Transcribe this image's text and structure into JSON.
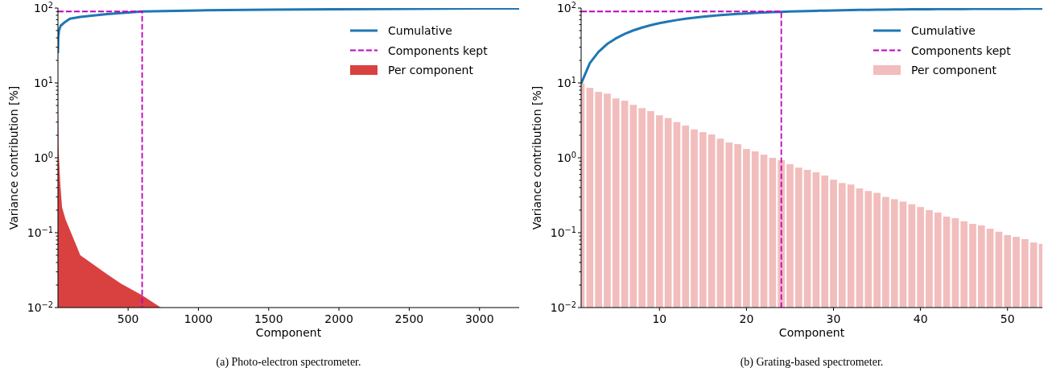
{
  "chart_data": [
    {
      "type": "area",
      "xlabel": "Component",
      "ylabel": "Variance contribution [%]",
      "log": "y",
      "legend": "top right",
      "xlim": [
        1,
        3282
      ],
      "ylim": [
        0.01,
        100
      ],
      "xticks": [
        500,
        1000,
        1500,
        2000,
        2500,
        3000
      ],
      "yticks": [
        {
          "value": 0.01,
          "label": "10$^{−2}$"
        },
        {
          "value": 0.1,
          "label": "10$^{−1}$"
        },
        {
          "value": 1,
          "label": "10$^{0}$"
        },
        {
          "value": 10,
          "label": "10$^{1}$"
        },
        {
          "value": 100,
          "label": "10$^{2}$"
        },
        {
          "value": 0.02,
          "label": null
        },
        {
          "value": 0.03,
          "label": null
        },
        {
          "value": 0.04,
          "label": null
        },
        {
          "value": 0.05,
          "label": null
        },
        {
          "value": 0.06,
          "label": null
        },
        {
          "value": 0.07,
          "label": null
        },
        {
          "value": 0.08,
          "label": null
        },
        {
          "value": 0.09,
          "label": null
        },
        {
          "value": 0.2,
          "label": null
        },
        {
          "value": 0.3,
          "label": null
        },
        {
          "value": 0.4,
          "label": null
        },
        {
          "value": 0.5,
          "label": null
        },
        {
          "value": 0.6,
          "label": null
        },
        {
          "value": 0.7,
          "label": null
        },
        {
          "value": 0.8,
          "label": null
        },
        {
          "value": 0.9,
          "label": null
        },
        {
          "value": 2,
          "label": null
        },
        {
          "value": 3,
          "label": null
        },
        {
          "value": 4,
          "label": null
        },
        {
          "value": 5,
          "label": null
        },
        {
          "value": 6,
          "label": null
        },
        {
          "value": 7,
          "label": null
        },
        {
          "value": 8,
          "label": null
        },
        {
          "value": 9,
          "label": null
        },
        {
          "value": 20,
          "label": null
        },
        {
          "value": 30,
          "label": null
        },
        {
          "value": 40,
          "label": null
        },
        {
          "value": 50,
          "label": null
        },
        {
          "value": 60,
          "label": null
        },
        {
          "value": 70,
          "label": null
        },
        {
          "value": 80,
          "label": null
        },
        {
          "value": 90,
          "label": null
        }
      ],
      "series": [
        {
          "name": "Cumulative",
          "type": "line",
          "line_style": "solid",
          "color": "#1f77b4",
          "x": [
            1,
            3,
            8,
            20,
            46,
            86,
            160,
            350,
            600,
            1000,
            1500,
            2000,
            2500,
            3000,
            3282
          ],
          "values": [
            25,
            40,
            50,
            58,
            64,
            72,
            76,
            83,
            90,
            93,
            95,
            96.5,
            97.5,
            98.5,
            99
          ]
        },
        {
          "name": "Components kept",
          "type": "line",
          "line_style": "dashed",
          "color": "#bf00bf",
          "x": [
            1,
            600,
            600
          ],
          "values": [
            90,
            90,
            0.01
          ]
        },
        {
          "name": "Per component",
          "color": "#d94141",
          "x": [
            1,
            2,
            5,
            17,
            30,
            55,
            103,
            160,
            350,
            447,
            600,
            733
          ],
          "values": [
            25,
            4,
            1.4,
            0.47,
            0.22,
            0.15,
            0.091,
            0.05,
            0.028,
            0.021,
            0.0146,
            0.01
          ]
        }
      ],
      "annotations": [
        "(a) Photo-electron spectrometer."
      ]
    },
    {
      "type": "bar",
      "xlabel": "Component",
      "ylabel": "Variance contribution [%]",
      "log": "y",
      "legend": "top right",
      "xlim": [
        1,
        54
      ],
      "ylim": [
        0.01,
        100
      ],
      "xticks": [
        10,
        20,
        30,
        40,
        50
      ],
      "yticks": [
        {
          "value": 0.01,
          "label": "10$^{−2}$"
        },
        {
          "value": 0.1,
          "label": "10$^{−1}$"
        },
        {
          "value": 1,
          "label": "10$^{0}$"
        },
        {
          "value": 10,
          "label": "10$^{1}$"
        },
        {
          "value": 100,
          "label": "10$^{2}$"
        },
        {
          "value": 0.02,
          "label": null
        },
        {
          "value": 0.03,
          "label": null
        },
        {
          "value": 0.04,
          "label": null
        },
        {
          "value": 0.05,
          "label": null
        },
        {
          "value": 0.06,
          "label": null
        },
        {
          "value": 0.07,
          "label": null
        },
        {
          "value": 0.08,
          "label": null
        },
        {
          "value": 0.09,
          "label": null
        },
        {
          "value": 0.2,
          "label": null
        },
        {
          "value": 0.3,
          "label": null
        },
        {
          "value": 0.4,
          "label": null
        },
        {
          "value": 0.5,
          "label": null
        },
        {
          "value": 0.6,
          "label": null
        },
        {
          "value": 0.7,
          "label": null
        },
        {
          "value": 0.8,
          "label": null
        },
        {
          "value": 0.9,
          "label": null
        },
        {
          "value": 2,
          "label": null
        },
        {
          "value": 3,
          "label": null
        },
        {
          "value": 4,
          "label": null
        },
        {
          "value": 5,
          "label": null
        },
        {
          "value": 6,
          "label": null
        },
        {
          "value": 7,
          "label": null
        },
        {
          "value": 8,
          "label": null
        },
        {
          "value": 9,
          "label": null
        },
        {
          "value": 20,
          "label": null
        },
        {
          "value": 30,
          "label": null
        },
        {
          "value": 40,
          "label": null
        },
        {
          "value": 50,
          "label": null
        },
        {
          "value": 60,
          "label": null
        },
        {
          "value": 70,
          "label": null
        },
        {
          "value": 80,
          "label": null
        },
        {
          "value": 90,
          "label": null
        }
      ],
      "series": [
        {
          "name": "Per component",
          "color": "#f2bdbd",
          "x": [
            1,
            2,
            3,
            4,
            5,
            6,
            7,
            8,
            9,
            10,
            11,
            12,
            13,
            14,
            15,
            16,
            17,
            18,
            19,
            20,
            21,
            22,
            23,
            24,
            25,
            26,
            27,
            28,
            29,
            30,
            31,
            32,
            33,
            34,
            35,
            36,
            37,
            38,
            39,
            40,
            41,
            42,
            43,
            44,
            45,
            46,
            47,
            48,
            49,
            50,
            51,
            52,
            53,
            54
          ],
          "values": [
            9.8,
            8.6,
            7.6,
            7.2,
            6.2,
            5.8,
            5.1,
            4.6,
            4.2,
            3.7,
            3.4,
            3.0,
            2.7,
            2.4,
            2.2,
            2.05,
            1.8,
            1.6,
            1.52,
            1.31,
            1.22,
            1.1,
            1.0,
            0.93,
            0.82,
            0.74,
            0.69,
            0.64,
            0.58,
            0.51,
            0.46,
            0.44,
            0.39,
            0.36,
            0.34,
            0.3,
            0.28,
            0.26,
            0.24,
            0.22,
            0.2,
            0.186,
            0.164,
            0.156,
            0.142,
            0.131,
            0.125,
            0.113,
            0.103,
            0.093,
            0.088,
            0.082,
            0.074,
            0.071
          ]
        },
        {
          "name": "Cumulative",
          "type": "line",
          "line_style": "solid",
          "color": "#1f77b4",
          "x": [
            1,
            2,
            3,
            4,
            5,
            6,
            7,
            8,
            9,
            10,
            11,
            12,
            13,
            14,
            15,
            16,
            17,
            18,
            19,
            20,
            21,
            22,
            23,
            24,
            25,
            26,
            27,
            28,
            29,
            30,
            31,
            32,
            33,
            34,
            35,
            36,
            37,
            38,
            39,
            40,
            41,
            42,
            43,
            44,
            45,
            46,
            47,
            48,
            49,
            50,
            51,
            52,
            53,
            54
          ],
          "values": [
            9.8,
            18.4,
            26.0,
            33.2,
            39.4,
            45.2,
            50.3,
            54.9,
            59.1,
            62.8,
            66.2,
            69.2,
            71.9,
            74.3,
            76.5,
            78.6,
            80.4,
            82.0,
            83.5,
            84.8,
            86.0,
            87.1,
            88.1,
            89.1,
            89.9,
            90.6,
            91.3,
            91.9,
            92.5,
            93.0,
            93.5,
            93.9,
            94.3,
            94.7,
            95.0,
            95.3,
            95.6,
            95.9,
            96.1,
            96.3,
            96.5,
            96.7,
            96.9,
            97.0,
            97.2,
            97.3,
            97.4,
            97.6,
            97.7,
            97.7,
            97.8,
            97.9,
            98.0,
            98.1
          ]
        },
        {
          "name": "Components kept",
          "type": "line",
          "line_style": "dashed",
          "color": "#bf00bf",
          "x": [
            1,
            24,
            24
          ],
          "values": [
            90,
            90,
            0.01
          ]
        }
      ],
      "annotations": [
        "(b) Grating-based spectrometer."
      ]
    }
  ]
}
